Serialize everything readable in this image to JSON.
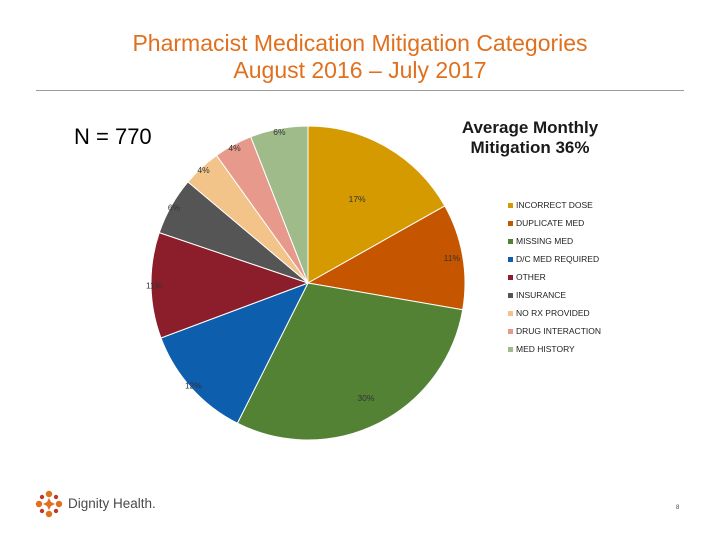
{
  "slide": {
    "title_line1": "Pharmacist Medication Mitigation Categories",
    "title_line2": "August 2016 – July 2017",
    "n_label": "N = 770",
    "avg_line1": "Average Monthly",
    "avg_line2": "Mitigation 36%",
    "logo_text": "Dignity Health.",
    "page_number": "8"
  },
  "colors": {
    "title": "#e0701e",
    "rule": "#9a9a9a"
  },
  "chart_data": {
    "type": "pie",
    "title": "Pharmacist Medication Mitigation Categories",
    "slices": [
      {
        "name": "INCORRECT DOSE",
        "value": 17,
        "label": "17%",
        "color": "#d49a00"
      },
      {
        "name": "DUPLICATE MED",
        "value": 11,
        "label": "11%",
        "color": "#c65500"
      },
      {
        "name": "MISSING MED",
        "value": 30,
        "label": "30%",
        "color": "#548235"
      },
      {
        "name": "D/C MED REQUIRED",
        "value": 12,
        "label": "12%",
        "color": "#0e5eae"
      },
      {
        "name": "OTHER",
        "value": 11,
        "label": "11%",
        "color": "#8b1e2a"
      },
      {
        "name": "INSURANCE",
        "value": 6,
        "label": "6%",
        "color": "#555555"
      },
      {
        "name": "NO RX PROVIDED",
        "value": 4,
        "label": "4%",
        "color": "#f2c48a"
      },
      {
        "name": "DRUG INTERACTION",
        "value": 4,
        "label": "4%",
        "color": "#e79a8c"
      },
      {
        "name": "MED HISTORY",
        "value": 6,
        "label": "6%",
        "color": "#9fbb8a"
      }
    ],
    "legend_position": "right"
  }
}
